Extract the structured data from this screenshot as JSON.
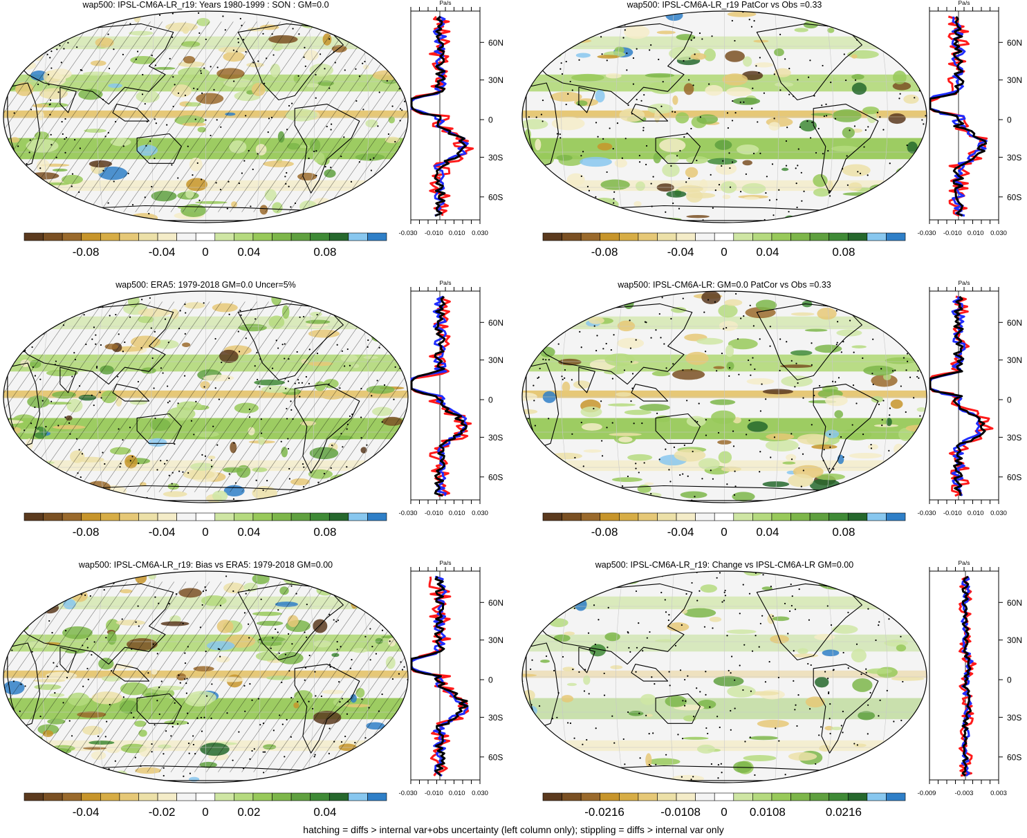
{
  "colors": {
    "palette": [
      "#5b3a1e",
      "#7a5023",
      "#9a6a2c",
      "#c7952b",
      "#d7ad46",
      "#e6c877",
      "#ece0a8",
      "#f4ecc8",
      "#f4f4f4",
      "#ffffff",
      "#cfe6a4",
      "#b5da7f",
      "#98c95a",
      "#7db64a",
      "#5fa03f",
      "#3f8a36",
      "#26682d",
      "#88c7ef",
      "#2f7fc7"
    ],
    "land_line": "#000000",
    "model_line": "#000000",
    "obs_line": "#1f2dff",
    "other_line": "#ff1a1a"
  },
  "panels": [
    {
      "title": "wap500: IPSL-CM6A-LR_r19: Years 1980-1999 : SON : GM=0.0",
      "unit": "Pa/s",
      "lat_labels": [
        "60N",
        "30N",
        "0",
        "30S",
        "60S"
      ],
      "profile_ticks": [
        "-0.030",
        "-0.010",
        "0.010",
        "0.030"
      ],
      "colorbar_labels": [
        "-0.08",
        "-0.04",
        "0",
        "0.04",
        "0.08"
      ],
      "hatched": true
    },
    {
      "title": "wap500: IPSL-CM6A-LR_r19 PatCor vs Obs =0.33",
      "unit": "Pa/s",
      "lat_labels": [
        "60N",
        "30N",
        "0",
        "30S",
        "60S"
      ],
      "profile_ticks": [
        "-0.030",
        "-0.010",
        "0.010",
        "0.030"
      ],
      "colorbar_labels": [
        "-0.08",
        "-0.04",
        "0",
        "0.04",
        "0.08"
      ],
      "hatched": false
    },
    {
      "title": "wap500: ERA5: 1979-2018 GM=0.0 Uncer=5%",
      "unit": "Pa/s",
      "lat_labels": [
        "60N",
        "30N",
        "0",
        "30S",
        "60S"
      ],
      "profile_ticks": [
        "-0.030",
        "-0.010",
        "0.010",
        "0.030"
      ],
      "colorbar_labels": [
        "-0.08",
        "-0.04",
        "0",
        "0.04",
        "0.08"
      ],
      "hatched": true
    },
    {
      "title": "wap500: IPSL-CM6A-LR: GM=0.0 PatCor vs Obs =0.33",
      "unit": "Pa/s",
      "lat_labels": [
        "60N",
        "30N",
        "0",
        "30S",
        "60S"
      ],
      "profile_ticks": [
        "-0.030",
        "-0.010",
        "0.010",
        "0.030"
      ],
      "colorbar_labels": [
        "-0.08",
        "-0.04",
        "0",
        "0.04",
        "0.08"
      ],
      "hatched": false
    },
    {
      "title": "wap500: IPSL-CM6A-LR_r19: Bias vs ERA5: 1979-2018  GM=0.00",
      "unit": "Pa/s",
      "lat_labels": [
        "60N",
        "30N",
        "0",
        "30S",
        "60S"
      ],
      "profile_ticks": [
        "-0.030",
        "-0.010",
        "0.010",
        "0.030"
      ],
      "colorbar_labels": [
        "-0.04",
        "-0.02",
        "0",
        "0.02",
        "0.04"
      ],
      "hatched": true
    },
    {
      "title": "wap500: IPSL-CM6A-LR_r19: Change vs IPSL-CM6A-LR GM=0.00",
      "unit": "Pa/s",
      "lat_labels": [
        "60N",
        "30N",
        "0",
        "30S",
        "60S"
      ],
      "profile_ticks": [
        "-0.009",
        "-0.003",
        "0.003"
      ],
      "colorbar_labels": [
        "-0.0216",
        "-0.0108",
        "0",
        "0.0108",
        "0.0216"
      ],
      "hatched": false
    }
  ],
  "footer": "hatching = diffs > internal var+obs uncertainty (left column only); stippling = diffs > internal var only"
}
